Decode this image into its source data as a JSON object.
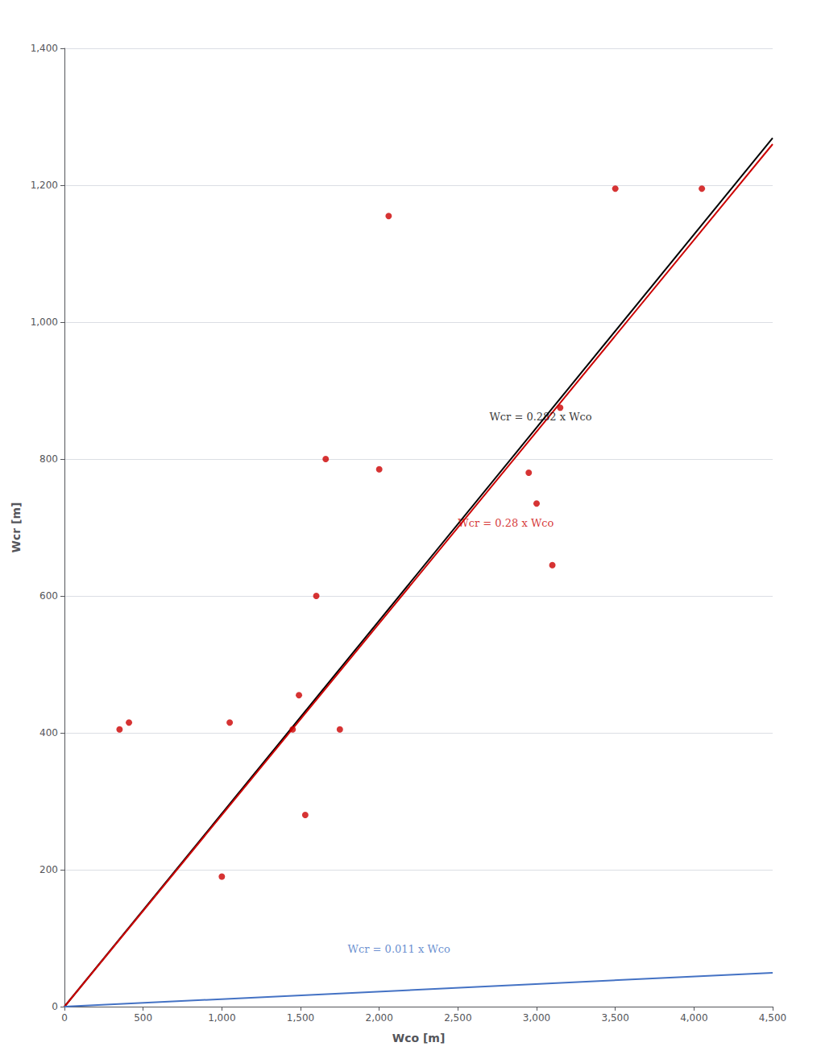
{
  "chart_data": {
    "type": "scatter",
    "xlabel": "Wco [m]",
    "ylabel": "Wcr [m]",
    "xlim": [
      0,
      4500
    ],
    "ylim": [
      0,
      1400
    ],
    "xticks": [
      0,
      500,
      1000,
      1500,
      2000,
      2500,
      3000,
      3500,
      4000,
      4500
    ],
    "yticks": [
      0,
      200,
      400,
      600,
      800,
      1000,
      1200,
      1400
    ],
    "grid": true,
    "series": [
      {
        "type": "scatter",
        "color": "#CC0000",
        "marker": "circle",
        "x": [
          350,
          410,
          1000,
          1050,
          1450,
          1490,
          1530,
          1600,
          1660,
          1750,
          2000,
          2060,
          2950,
          3000,
          3100,
          3150,
          3500,
          4050
        ],
        "values": [
          405,
          415,
          190,
          415,
          405,
          455,
          280,
          600,
          800,
          405,
          785,
          1155,
          780,
          735,
          645,
          875,
          1195,
          1195
        ]
      },
      {
        "type": "line",
        "color": "#000000",
        "line_style": "solid",
        "x": [
          0,
          4500
        ],
        "values": [
          0,
          1269
        ]
      },
      {
        "type": "line",
        "color": "#CC0000",
        "line_style": "solid",
        "x": [
          0,
          4500
        ],
        "values": [
          0,
          1260
        ]
      },
      {
        "type": "line",
        "color": "#4472C4",
        "line_style": "solid",
        "x": [
          0,
          4500
        ],
        "values": [
          0,
          49.5
        ]
      }
    ],
    "annotations": [
      {
        "text": "Wcr = 0.282 x Wco",
        "x": 2700,
        "y": 861.4,
        "color": "#000000"
      },
      {
        "text": "Wcr = 0.28 x Wco",
        "x": 2500,
        "y": 706,
        "color": "#CC0000"
      },
      {
        "text": "Wcr = 0.011 x Wco",
        "x": 1800,
        "y": 84.5,
        "color": "#4472C4"
      }
    ]
  }
}
